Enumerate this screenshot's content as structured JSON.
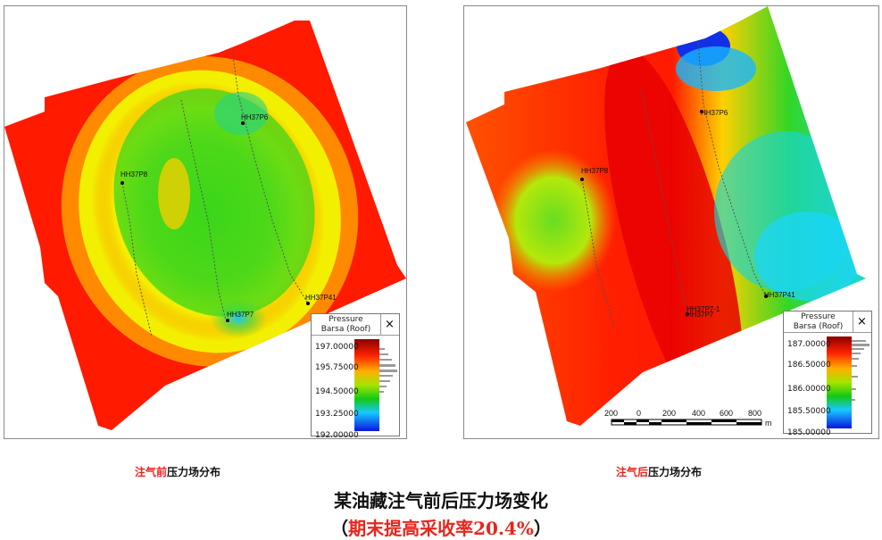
{
  "left_panel": {
    "wells": [
      {
        "label": "HH37P8"
      },
      {
        "label": "HH37P6"
      },
      {
        "label": "HH37P41"
      },
      {
        "label": "HH37P7"
      }
    ],
    "legend": {
      "title_line1": "Pressure",
      "title_line2": "Barsa (Roof)",
      "close_label": "×",
      "ticks": [
        "197.00000",
        "195.75000",
        "194.50000",
        "193.25000",
        "192.00000"
      ]
    },
    "caption_highlight": "注气前",
    "caption_rest": "压力场分布"
  },
  "right_panel": {
    "wells": [
      {
        "label": "HH37P8"
      },
      {
        "label": "HH37P6"
      },
      {
        "label": "HH37P41"
      },
      {
        "label": "HH37P7-1"
      },
      {
        "label": "HH37P7"
      }
    ],
    "legend": {
      "title_line1": "Pressure",
      "title_line2": "Barsa (Roof)",
      "close_label": "×",
      "ticks": [
        "187.00000",
        "186.50000",
        "186.00000",
        "185.50000",
        "185.00000"
      ]
    },
    "scale_bar": {
      "ticks": [
        "200",
        "0",
        "200",
        "400",
        "600",
        "800"
      ],
      "unit": "m"
    },
    "caption_highlight": "注气后",
    "caption_rest": "压力场分布"
  },
  "title": "某油藏注气前后压力场变化",
  "subtitle_open": "（",
  "subtitle_highlight": "期末提高采收率20.4%",
  "subtitle_close": "）",
  "colors": {
    "accent_red": "#e8251c",
    "map_high": "#ff1a00",
    "map_mid": "#2bd30a",
    "map_low": "#18c8ff"
  }
}
